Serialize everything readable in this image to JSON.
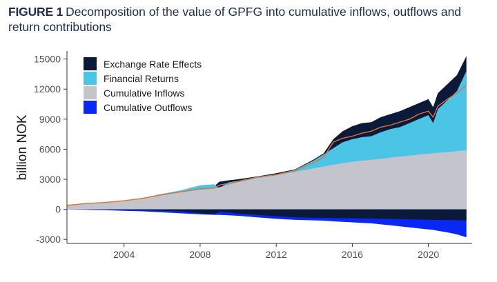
{
  "figure": {
    "label": "FIGURE 1",
    "title": "Decomposition of the value of GPFG into cumulative inflows, outflows and return contributions"
  },
  "chart_data": {
    "type": "area",
    "ylabel": "billion NOK",
    "xlabel": "",
    "xlim": [
      2001,
      2022.3
    ],
    "ylim": [
      -3400,
      15800
    ],
    "x_ticks": [
      2004,
      2008,
      2012,
      2016,
      2020
    ],
    "y_ticks": [
      -3000,
      0,
      3000,
      6000,
      9000,
      12000,
      15000
    ],
    "y_tick_labels": [
      "-3000",
      "0",
      "3000",
      "6000",
      "9000",
      "12000",
      "15000"
    ],
    "grid": false,
    "legend_position": "top-left",
    "x": [
      2001,
      2002,
      2003,
      2004,
      2005,
      2006,
      2007,
      2008,
      2008.75,
      2009,
      2009.5,
      2010,
      2011,
      2012,
      2013,
      2014,
      2014.5,
      2015,
      2015.5,
      2016,
      2016.5,
      2017,
      2017.5,
      2018,
      2018.5,
      2019,
      2019.5,
      2020,
      2020.25,
      2020.5,
      2021,
      2021.5,
      2022
    ],
    "series": [
      {
        "name": "Exchange Rate Effects",
        "color": "#0c1a3a",
        "values": [
          400,
          580,
          690,
          840,
          1050,
          1400,
          1750,
          2150,
          2300,
          2750,
          2900,
          3000,
          3280,
          3600,
          4000,
          5000,
          5600,
          7000,
          7800,
          8300,
          8600,
          8700,
          9200,
          9500,
          9800,
          10200,
          10600,
          11000,
          10200,
          11600,
          12500,
          13400,
          15300
        ]
      },
      {
        "name": "Financial Returns",
        "color": "#4bc4e6",
        "values": [
          400,
          580,
          690,
          900,
          1150,
          1550,
          1900,
          2400,
          2500,
          2100,
          2700,
          2850,
          3250,
          3500,
          3950,
          4900,
          5500,
          6100,
          6700,
          7000,
          7200,
          7300,
          7700,
          8000,
          8200,
          8600,
          9000,
          9400,
          8600,
          10000,
          10900,
          11800,
          13800
        ]
      },
      {
        "name": "Cumulative Inflows",
        "color": "#c4c5cc",
        "values": [
          350,
          530,
          630,
          850,
          1150,
          1450,
          1700,
          1950,
          2050,
          2200,
          2450,
          2750,
          3100,
          3400,
          3750,
          4100,
          4270,
          4450,
          4600,
          4750,
          4850,
          4950,
          5050,
          5150,
          5250,
          5350,
          5450,
          5550,
          5600,
          5650,
          5700,
          5800,
          5900
        ]
      },
      {
        "name": "Cumulative Outflows",
        "color": "#0a28f5",
        "values": [
          0,
          -50,
          -80,
          -150,
          -200,
          -300,
          -400,
          -500,
          -550,
          -550,
          -600,
          -650,
          -800,
          -950,
          -1050,
          -1100,
          -1130,
          -1200,
          -1250,
          -1300,
          -1350,
          -1400,
          -1500,
          -1600,
          -1700,
          -1800,
          -1900,
          -2000,
          -2050,
          -2150,
          -2300,
          -2500,
          -2800
        ]
      },
      {
        "name": "",
        "color": "#0c1a3a",
        "values": [
          0,
          -10,
          -30,
          -60,
          -100,
          -150,
          -200,
          -400,
          -480,
          -250,
          -300,
          -450,
          -550,
          -700,
          -800,
          -850,
          -860,
          -870,
          -880,
          -890,
          -900,
          -920,
          -940,
          -960,
          -980,
          -1000,
          -1020,
          -1040,
          -1050,
          -1060,
          -1070,
          -1080,
          -1100
        ]
      },
      {
        "name": "",
        "color": "#e2703a",
        "values": [
          400,
          580,
          690,
          850,
          1100,
          1450,
          1750,
          2050,
          2150,
          2400,
          2600,
          2750,
          3200,
          3450,
          3850,
          4700,
          5200,
          6700,
          7100,
          7300,
          7600,
          7800,
          8200,
          8400,
          8700,
          9000,
          9500,
          9800,
          9200,
          10300,
          11000,
          11600,
          12400
        ]
      }
    ]
  }
}
